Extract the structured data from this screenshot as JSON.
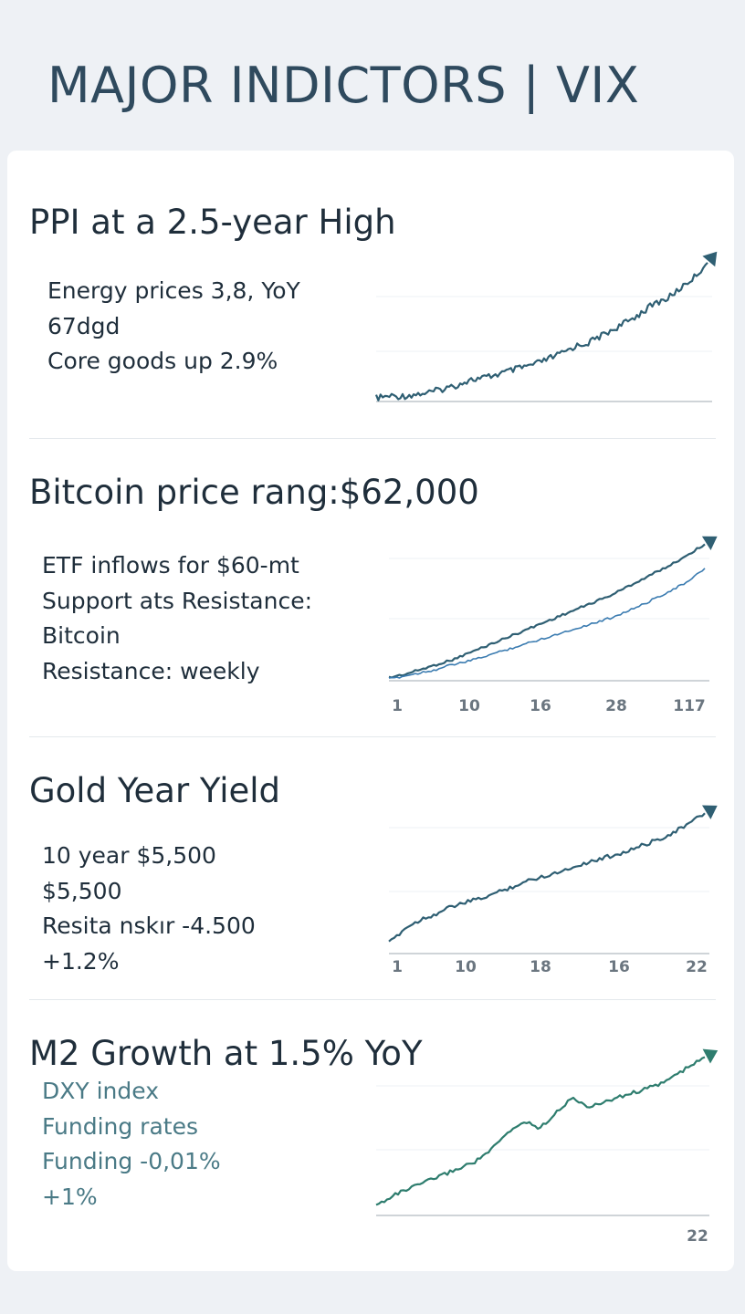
{
  "title": "MAJOR INDICTORS | VIX",
  "colors": {
    "line_dark": "#2f5f73",
    "line_blue": "#3a7bb0",
    "line_green": "#2e7d6e",
    "axis": "#bfc6cc",
    "grid": "#eef1f4"
  },
  "sections": [
    {
      "title": "PPI at a 2.5-year High",
      "lines": [
        "Energy prices 3,8, YoY",
        "67dgd",
        "Core goods up 2.9%"
      ]
    },
    {
      "title": "Bitcoin price rang:$62,000",
      "lines": [
        "ETF inflows for $60-mt",
        "Support ats Resistance:",
        "Bitcoin",
        "Resistance: weekly"
      ]
    },
    {
      "title": "Gold Year Yield",
      "lines": [
        "10 year $5,500",
        "$5,500",
        "Resita nskır -4.500",
        "+1.2%"
      ]
    },
    {
      "title": "M2 Growth at 1.5% YoY",
      "lines": [
        "DXY index",
        "Funding rates",
        "Funding -0,01%",
        "+1%"
      ]
    }
  ],
  "chart_data": [
    {
      "type": "line",
      "title": "PPI at a 2.5-year High",
      "x_tick_labels": [],
      "trend": "up",
      "series": [
        {
          "values": [
            2,
            3,
            3,
            4,
            5,
            7,
            9,
            12,
            13,
            15,
            17,
            19,
            21,
            24,
            27,
            31,
            33,
            37,
            41,
            45,
            50,
            55,
            58,
            64,
            70,
            78
          ]
        }
      ],
      "ylim": [
        0,
        100
      ]
    },
    {
      "type": "line",
      "title": "Bitcoin price rang:$62,000",
      "x_tick_labels": [
        "1",
        "10",
        "16",
        "28",
        "117"
      ],
      "trend": "up",
      "series": [
        {
          "values": [
            2,
            4,
            7,
            10,
            13,
            17,
            21,
            25,
            29,
            33,
            37,
            41,
            45,
            49,
            53,
            58,
            63,
            68,
            73,
            79,
            85
          ]
        },
        {
          "values": [
            1,
            3,
            5,
            7,
            10,
            12,
            15,
            18,
            21,
            24,
            27,
            30,
            33,
            36,
            39,
            43,
            47,
            52,
            57,
            62,
            70
          ]
        }
      ],
      "ylim": [
        0,
        100
      ]
    },
    {
      "type": "line",
      "title": "Gold Year Yield",
      "x_tick_labels": [
        "1",
        "10",
        "18",
        "16",
        "22"
      ],
      "trend": "up",
      "series": [
        {
          "values": [
            2,
            12,
            18,
            22,
            27,
            30,
            33,
            37,
            41,
            45,
            48,
            51,
            55,
            58,
            61,
            64,
            68,
            72,
            77,
            83,
            90
          ]
        }
      ],
      "ylim": [
        0,
        100
      ]
    },
    {
      "type": "line",
      "title": "M2 Growth at 1.5% YoY",
      "x_tick_labels": [
        "22"
      ],
      "trend": "up",
      "series": [
        {
          "values": [
            2,
            8,
            12,
            16,
            20,
            24,
            28,
            35,
            45,
            52,
            48,
            58,
            66,
            60,
            64,
            67,
            70,
            73,
            78,
            84,
            90
          ]
        }
      ],
      "ylim": [
        0,
        100
      ]
    }
  ]
}
